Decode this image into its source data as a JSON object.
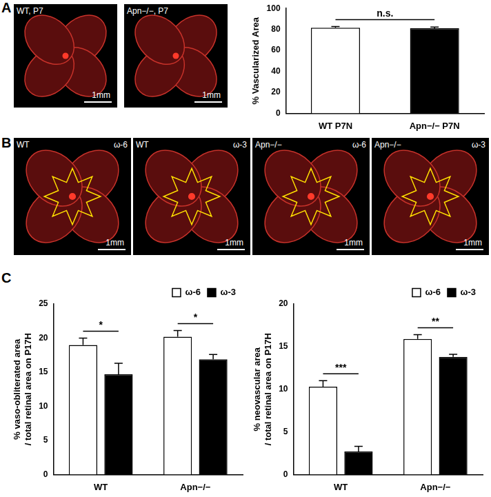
{
  "panel_labels": [
    "A",
    "B",
    "C"
  ],
  "image_panels": [
    {
      "images": [
        {
          "label": "WT, P7",
          "scale_bar": "1mm"
        },
        {
          "label": "Apn−/−, P7",
          "scale_bar": "1mm"
        }
      ]
    },
    {
      "images": [
        {
          "label": "WT",
          "diet": "ω-6",
          "scale_bar": "1mm"
        },
        {
          "label": "WT",
          "diet": "ω-3",
          "scale_bar": "1mm"
        },
        {
          "label": "Apn−/−",
          "diet": "ω-6",
          "scale_bar": "1mm"
        },
        {
          "label": "Apn−/−",
          "diet": "ω-3",
          "scale_bar": "1mm"
        }
      ]
    }
  ],
  "chart_data": [
    {
      "type": "bar",
      "categories": [
        "WT P7N",
        "Apn−/− P7N"
      ],
      "values": [
        81.5,
        81
      ],
      "errors": [
        1.2,
        1.2
      ],
      "colors": [
        "#ffffff",
        "#000000"
      ],
      "ylabel": [
        "% Vascularized Area"
      ],
      "ylim": [
        0,
        100
      ],
      "yticks": [
        0,
        20,
        40,
        60,
        80,
        100
      ],
      "grid": false,
      "annotations": [
        {
          "text": "n.s.",
          "between": [
            0,
            1
          ]
        }
      ]
    },
    {
      "type": "bar",
      "categories": [
        "WT",
        "Apn−/−"
      ],
      "ylabel": [
        "% vaso-obliterated area",
        "/ total retinal area on P17H"
      ],
      "ylim": [
        0,
        25
      ],
      "yticks": [
        0,
        5,
        10,
        15,
        20,
        25
      ],
      "grid": false,
      "legend": "upper right",
      "series": [
        {
          "name": "ω-6",
          "color": "#ffffff",
          "values": [
            19,
            20.2
          ],
          "errors": [
            1.0,
            0.9
          ]
        },
        {
          "name": "ω-3",
          "color": "#000000",
          "values": [
            14.7,
            16.9
          ],
          "errors": [
            1.6,
            0.7
          ]
        }
      ],
      "annotations": [
        {
          "text": "*",
          "category": 0
        },
        {
          "text": "*",
          "category": 1
        }
      ]
    },
    {
      "type": "bar",
      "categories": [
        "WT",
        "Apn−/−"
      ],
      "ylabel": [
        "% neovascular area",
        "/ total retinal area on P17H"
      ],
      "ylim": [
        0,
        20
      ],
      "yticks": [
        0,
        5,
        10,
        15,
        20
      ],
      "grid": false,
      "legend": "upper right",
      "series": [
        {
          "name": "ω-6",
          "color": "#ffffff",
          "values": [
            10.3,
            15.9
          ],
          "errors": [
            0.7,
            0.5
          ]
        },
        {
          "name": "ω-3",
          "color": "#000000",
          "values": [
            2.7,
            13.8
          ],
          "errors": [
            0.6,
            0.3
          ]
        }
      ],
      "annotations": [
        {
          "text": "***",
          "category": 0
        },
        {
          "text": "**",
          "category": 1
        }
      ]
    }
  ]
}
